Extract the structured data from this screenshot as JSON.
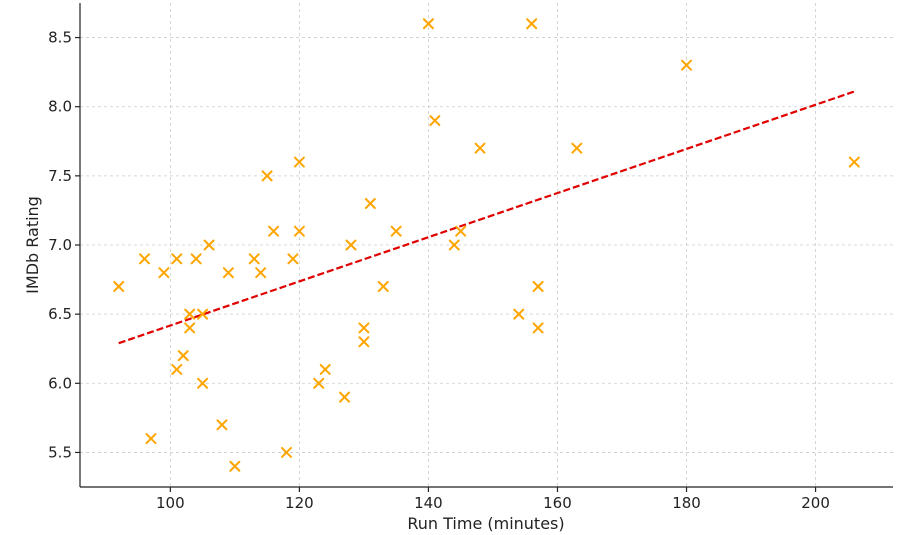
{
  "chart_data": {
    "type": "scatter",
    "title": "",
    "xlabel": "Run Time (minutes)",
    "ylabel": "IMDb Rating",
    "xlim": [
      86,
      212
    ],
    "ylim": [
      5.25,
      8.75
    ],
    "xticks": [
      100,
      120,
      140,
      160,
      180,
      200
    ],
    "yticks": [
      5.5,
      6.0,
      6.5,
      7.0,
      7.5,
      8.0,
      8.5
    ],
    "xtick_labels": [
      "100",
      "120",
      "140",
      "160",
      "180",
      "200"
    ],
    "ytick_labels": [
      "5.5",
      "6.0",
      "6.5",
      "7.0",
      "7.5",
      "8.0",
      "8.5"
    ],
    "grid": true,
    "marker": "x",
    "marker_color": "#FFA500",
    "trend_color": "#E00000",
    "points": [
      [
        92,
        6.7
      ],
      [
        96,
        6.9
      ],
      [
        97,
        5.6
      ],
      [
        99,
        6.8
      ],
      [
        101,
        6.9
      ],
      [
        101,
        6.1
      ],
      [
        102,
        6.2
      ],
      [
        103,
        6.5
      ],
      [
        103,
        6.4
      ],
      [
        104,
        6.9
      ],
      [
        105,
        6.5
      ],
      [
        105,
        6.0
      ],
      [
        106,
        7.0
      ],
      [
        108,
        5.7
      ],
      [
        109,
        6.8
      ],
      [
        110,
        5.4
      ],
      [
        113,
        6.9
      ],
      [
        114,
        6.8
      ],
      [
        115,
        7.5
      ],
      [
        116,
        7.1
      ],
      [
        118,
        5.5
      ],
      [
        119,
        6.9
      ],
      [
        120,
        7.6
      ],
      [
        120,
        7.1
      ],
      [
        123,
        6.0
      ],
      [
        124,
        6.1
      ],
      [
        127,
        5.9
      ],
      [
        128,
        7.0
      ],
      [
        130,
        6.4
      ],
      [
        130,
        6.3
      ],
      [
        131,
        7.3
      ],
      [
        133,
        6.7
      ],
      [
        135,
        7.1
      ],
      [
        140,
        8.6
      ],
      [
        141,
        7.9
      ],
      [
        144,
        7.0
      ],
      [
        145,
        7.1
      ],
      [
        148,
        7.7
      ],
      [
        154,
        6.5
      ],
      [
        156,
        8.6
      ],
      [
        157,
        6.7
      ],
      [
        157,
        6.4
      ],
      [
        163,
        7.7
      ],
      [
        180,
        8.3
      ],
      [
        206,
        7.6
      ]
    ],
    "trendline": {
      "x": [
        92,
        206
      ],
      "y": [
        6.29,
        8.11
      ]
    }
  }
}
